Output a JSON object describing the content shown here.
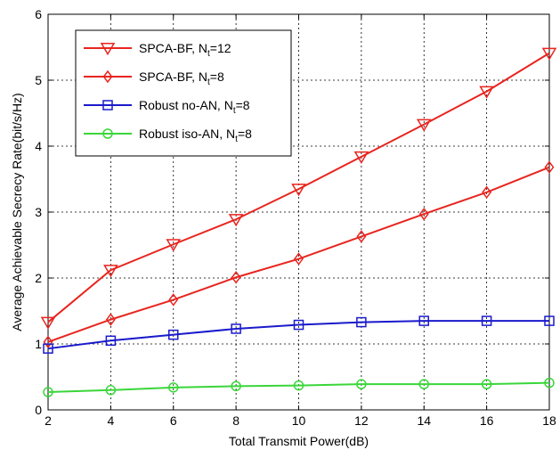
{
  "chart_data": {
    "type": "line",
    "title": "",
    "xlabel": "Total Transmit Power(dB)",
    "ylabel": "Average Achievable Secrecy Rate(bit/s/Hz)",
    "xlim": [
      2,
      18
    ],
    "ylim": [
      0,
      6
    ],
    "xticks": [
      2,
      4,
      6,
      8,
      10,
      12,
      14,
      16,
      18
    ],
    "yticks": [
      0,
      1,
      2,
      3,
      4,
      5,
      6
    ],
    "grid": true,
    "legend_position": "top-left",
    "x": [
      2,
      4,
      6,
      8,
      10,
      12,
      14,
      16,
      18
    ],
    "series": [
      {
        "name_main": "SPCA-BF, N",
        "name_sub": "t",
        "name_tail": "=12",
        "color": "#e8251f",
        "marker": "triangle-down",
        "values": [
          1.33,
          2.12,
          2.51,
          2.89,
          3.35,
          3.84,
          4.33,
          4.83,
          5.41
        ]
      },
      {
        "name_main": "SPCA-BF, N",
        "name_sub": "t",
        "name_tail": "=8",
        "color": "#e8251f",
        "marker": "diamond",
        "values": [
          1.03,
          1.37,
          1.67,
          2.01,
          2.29,
          2.63,
          2.97,
          3.3,
          3.68
        ]
      },
      {
        "name_main": "Robust no-AN, N",
        "name_sub": "t",
        "name_tail": "=8",
        "color": "#1a1acc",
        "marker": "square",
        "values": [
          0.93,
          1.05,
          1.14,
          1.23,
          1.29,
          1.33,
          1.35,
          1.35,
          1.35
        ]
      },
      {
        "name_main": "Robust iso-AN, N",
        "name_sub": "t",
        "name_tail": "=8",
        "color": "#3ad63a",
        "marker": "circle",
        "values": [
          0.27,
          0.3,
          0.34,
          0.36,
          0.37,
          0.39,
          0.39,
          0.39,
          0.41
        ]
      }
    ]
  }
}
